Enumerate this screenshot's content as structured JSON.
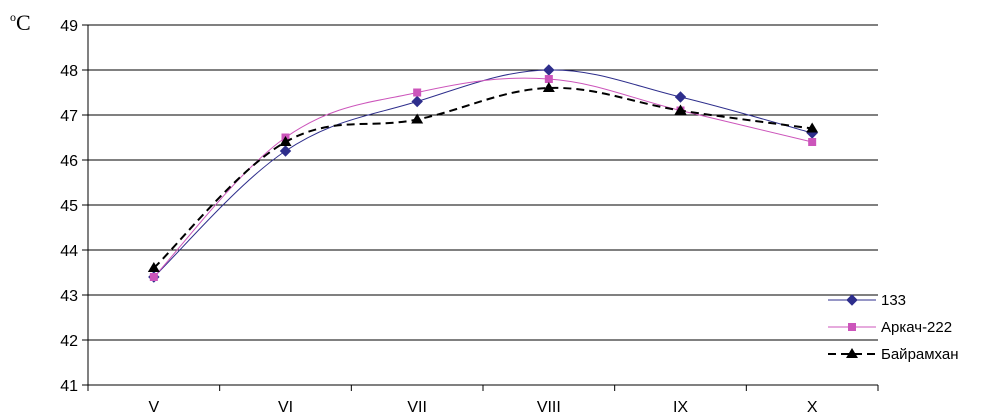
{
  "chart_data": {
    "type": "line",
    "unit_label": {
      "sup": "o",
      "main": "C"
    },
    "categories": [
      "V",
      "VI",
      "VII",
      "VIII",
      "IX",
      "X"
    ],
    "ylim": [
      41,
      49
    ],
    "yticks": [
      41,
      42,
      43,
      44,
      45,
      46,
      47,
      48,
      49
    ],
    "grid": true,
    "legend_position": "bottom-right",
    "series": [
      {
        "name": "133",
        "values": [
          43.4,
          46.2,
          47.3,
          48.0,
          47.4,
          46.6
        ],
        "color": "#2e2e8c",
        "marker": "diamond",
        "dash": "solid"
      },
      {
        "name": "Аркач-222",
        "values": [
          43.4,
          46.5,
          47.5,
          47.8,
          47.1,
          46.4
        ],
        "color": "#cc55bb",
        "marker": "square",
        "dash": "solid"
      },
      {
        "name": "Байрамхан",
        "values": [
          43.6,
          46.4,
          46.9,
          47.6,
          47.1,
          46.7
        ],
        "color": "#000000",
        "marker": "triangle",
        "dash": "dashed"
      }
    ]
  }
}
